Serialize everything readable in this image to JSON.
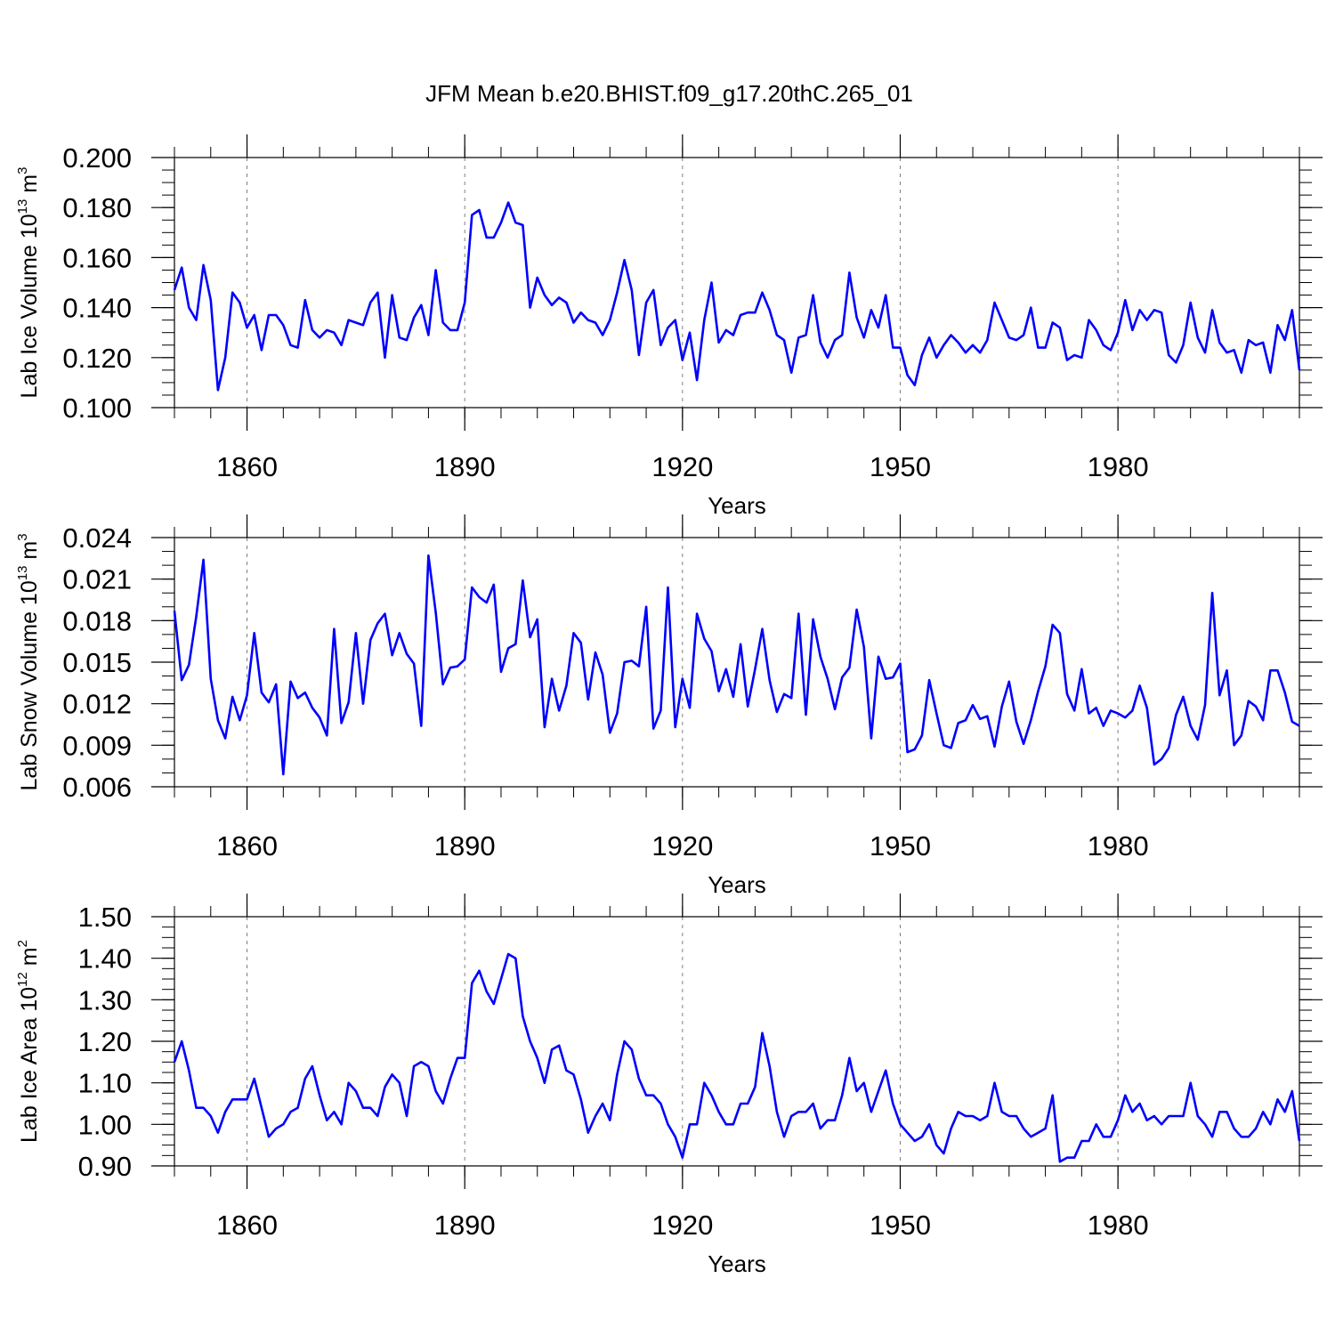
{
  "title": "JFM Mean b.e20.BHIST.f09_g17.20thC.265_01",
  "colors": {
    "series": "#0000ff",
    "axis": "#000000",
    "grid": "#7f7f7f"
  },
  "chart_data": [
    {
      "type": "line",
      "title": "JFM Mean b.e20.BHIST.f09_g17.20thC.265_01",
      "ylabel_prefix": "Lab Ice Volume 10",
      "ylabel_exp": "13",
      "ylabel_unit": "m",
      "ylabel_unit_exp": "3",
      "xlabel": "Years",
      "xlim": [
        1850,
        2005
      ],
      "ylim": [
        0.1,
        0.2
      ],
      "yticks": [
        "0.100",
        "0.120",
        "0.140",
        "0.160",
        "0.180",
        "0.200"
      ],
      "xticks": [
        "1860",
        "1890",
        "1920",
        "1950",
        "1980"
      ],
      "series": [
        {
          "name": "Lab Ice Volume",
          "x_start": 1850,
          "values": [
            0.147,
            0.156,
            0.14,
            0.135,
            0.157,
            0.143,
            0.107,
            0.12,
            0.146,
            0.142,
            0.132,
            0.137,
            0.123,
            0.137,
            0.137,
            0.133,
            0.125,
            0.124,
            0.143,
            0.131,
            0.128,
            0.131,
            0.13,
            0.125,
            0.135,
            0.134,
            0.133,
            0.142,
            0.146,
            0.12,
            0.145,
            0.128,
            0.127,
            0.136,
            0.141,
            0.129,
            0.155,
            0.134,
            0.131,
            0.131,
            0.142,
            0.177,
            0.179,
            0.168,
            0.168,
            0.174,
            0.182,
            0.174,
            0.173,
            0.14,
            0.152,
            0.145,
            0.141,
            0.144,
            0.142,
            0.134,
            0.138,
            0.135,
            0.134,
            0.129,
            0.135,
            0.146,
            0.159,
            0.147,
            0.121,
            0.142,
            0.147,
            0.125,
            0.132,
            0.135,
            0.119,
            0.13,
            0.111,
            0.135,
            0.15,
            0.126,
            0.131,
            0.129,
            0.137,
            0.138,
            0.138,
            0.146,
            0.139,
            0.129,
            0.127,
            0.114,
            0.128,
            0.129,
            0.145,
            0.126,
            0.12,
            0.127,
            0.129,
            0.154,
            0.136,
            0.128,
            0.139,
            0.132,
            0.145,
            0.124,
            0.124,
            0.113,
            0.109,
            0.121,
            0.128,
            0.12,
            0.125,
            0.129,
            0.126,
            0.122,
            0.125,
            0.122,
            0.127,
            0.142,
            0.135,
            0.128,
            0.127,
            0.129,
            0.14,
            0.124,
            0.124,
            0.134,
            0.132,
            0.119,
            0.121,
            0.12,
            0.135,
            0.131,
            0.125,
            0.123,
            0.13,
            0.143,
            0.131,
            0.139,
            0.135,
            0.139,
            0.138,
            0.121,
            0.118,
            0.125,
            0.142,
            0.128,
            0.122,
            0.139,
            0.126,
            0.122,
            0.123,
            0.114,
            0.127,
            0.125,
            0.126,
            0.114,
            0.133,
            0.127,
            0.139,
            0.115
          ]
        }
      ]
    },
    {
      "type": "line",
      "ylabel_prefix": "Lab Snow Volume 10",
      "ylabel_exp": "13",
      "ylabel_unit": "m",
      "ylabel_unit_exp": "3",
      "xlabel": "Years",
      "xlim": [
        1850,
        2005
      ],
      "ylim": [
        0.006,
        0.024
      ],
      "yticks": [
        "0.006",
        "0.009",
        "0.012",
        "0.015",
        "0.018",
        "0.021",
        "0.024"
      ],
      "xticks": [
        "1860",
        "1890",
        "1920",
        "1950",
        "1980"
      ],
      "series": [
        {
          "name": "Lab Snow Volume",
          "x_start": 1850,
          "values": [
            0.0187,
            0.0137,
            0.0148,
            0.0183,
            0.0224,
            0.0138,
            0.0108,
            0.0095,
            0.0125,
            0.0108,
            0.0126,
            0.0171,
            0.0128,
            0.0121,
            0.0134,
            0.0069,
            0.0136,
            0.0124,
            0.0128,
            0.0117,
            0.011,
            0.0097,
            0.0174,
            0.0106,
            0.0121,
            0.0171,
            0.012,
            0.0166,
            0.0178,
            0.0185,
            0.0155,
            0.0171,
            0.0156,
            0.0149,
            0.0104,
            0.0227,
            0.0186,
            0.0134,
            0.0146,
            0.0147,
            0.0152,
            0.0204,
            0.0197,
            0.0193,
            0.0206,
            0.0143,
            0.016,
            0.0163,
            0.0209,
            0.0168,
            0.0181,
            0.0103,
            0.0138,
            0.0115,
            0.0133,
            0.0171,
            0.0164,
            0.0123,
            0.0157,
            0.0141,
            0.0099,
            0.0113,
            0.015,
            0.0151,
            0.0147,
            0.019,
            0.0102,
            0.0115,
            0.0204,
            0.0103,
            0.0138,
            0.0117,
            0.0185,
            0.0167,
            0.0158,
            0.0129,
            0.0145,
            0.0125,
            0.0163,
            0.0118,
            0.0145,
            0.0174,
            0.0137,
            0.0114,
            0.0127,
            0.0124,
            0.0185,
            0.0112,
            0.0181,
            0.0154,
            0.0138,
            0.0116,
            0.0139,
            0.0146,
            0.0188,
            0.0161,
            0.0095,
            0.0154,
            0.0138,
            0.0139,
            0.0149,
            0.0085,
            0.0087,
            0.0097,
            0.0137,
            0.0113,
            0.009,
            0.0088,
            0.0106,
            0.0108,
            0.0119,
            0.0109,
            0.0111,
            0.0089,
            0.0118,
            0.0136,
            0.0107,
            0.0091,
            0.0108,
            0.0129,
            0.0147,
            0.0177,
            0.0171,
            0.0127,
            0.0115,
            0.0145,
            0.0113,
            0.0117,
            0.0104,
            0.0115,
            0.0113,
            0.011,
            0.0115,
            0.0133,
            0.0117,
            0.0076,
            0.008,
            0.0088,
            0.0112,
            0.0125,
            0.0104,
            0.0094,
            0.0119,
            0.02,
            0.0126,
            0.0144,
            0.009,
            0.0097,
            0.0122,
            0.0118,
            0.0108,
            0.0144,
            0.0144,
            0.0128,
            0.0107,
            0.0104
          ]
        }
      ]
    },
    {
      "type": "line",
      "ylabel_prefix": "Lab Ice Area 10",
      "ylabel_exp": "12",
      "ylabel_unit": "m",
      "ylabel_unit_exp": "2",
      "xlabel": "Years",
      "xlim": [
        1850,
        2005
      ],
      "ylim": [
        0.9,
        1.5
      ],
      "yticks": [
        "0.90",
        "1.00",
        "1.10",
        "1.20",
        "1.30",
        "1.40",
        "1.50"
      ],
      "xticks": [
        "1860",
        "1890",
        "1920",
        "1950",
        "1980"
      ],
      "series": [
        {
          "name": "Lab Ice Area",
          "x_start": 1850,
          "values": [
            1.15,
            1.2,
            1.13,
            1.04,
            1.04,
            1.02,
            0.98,
            1.03,
            1.06,
            1.06,
            1.06,
            1.11,
            1.04,
            0.97,
            0.99,
            1.0,
            1.03,
            1.04,
            1.11,
            1.14,
            1.07,
            1.01,
            1.03,
            1.0,
            1.1,
            1.08,
            1.04,
            1.04,
            1.02,
            1.09,
            1.12,
            1.1,
            1.02,
            1.14,
            1.15,
            1.14,
            1.08,
            1.05,
            1.11,
            1.16,
            1.16,
            1.34,
            1.37,
            1.32,
            1.29,
            1.35,
            1.41,
            1.4,
            1.26,
            1.2,
            1.16,
            1.1,
            1.18,
            1.19,
            1.13,
            1.12,
            1.06,
            0.98,
            1.02,
            1.05,
            1.01,
            1.12,
            1.2,
            1.18,
            1.11,
            1.07,
            1.07,
            1.05,
            1.0,
            0.97,
            0.92,
            1.0,
            1.0,
            1.1,
            1.07,
            1.03,
            1.0,
            1.0,
            1.05,
            1.05,
            1.09,
            1.22,
            1.14,
            1.03,
            0.97,
            1.02,
            1.03,
            1.03,
            1.05,
            0.99,
            1.01,
            1.01,
            1.07,
            1.16,
            1.08,
            1.1,
            1.03,
            1.08,
            1.13,
            1.05,
            1.0,
            0.98,
            0.96,
            0.97,
            1.0,
            0.95,
            0.93,
            0.99,
            1.03,
            1.02,
            1.02,
            1.01,
            1.02,
            1.1,
            1.03,
            1.02,
            1.02,
            0.99,
            0.97,
            0.98,
            0.99,
            1.07,
            0.91,
            0.92,
            0.92,
            0.96,
            0.96,
            1.0,
            0.97,
            0.97,
            1.01,
            1.07,
            1.03,
            1.05,
            1.01,
            1.02,
            1.0,
            1.02,
            1.02,
            1.02,
            1.1,
            1.02,
            1.0,
            0.97,
            1.03,
            1.03,
            0.99,
            0.97,
            0.97,
            0.99,
            1.03,
            1.0,
            1.06,
            1.03,
            1.08,
            0.96
          ]
        }
      ]
    }
  ]
}
